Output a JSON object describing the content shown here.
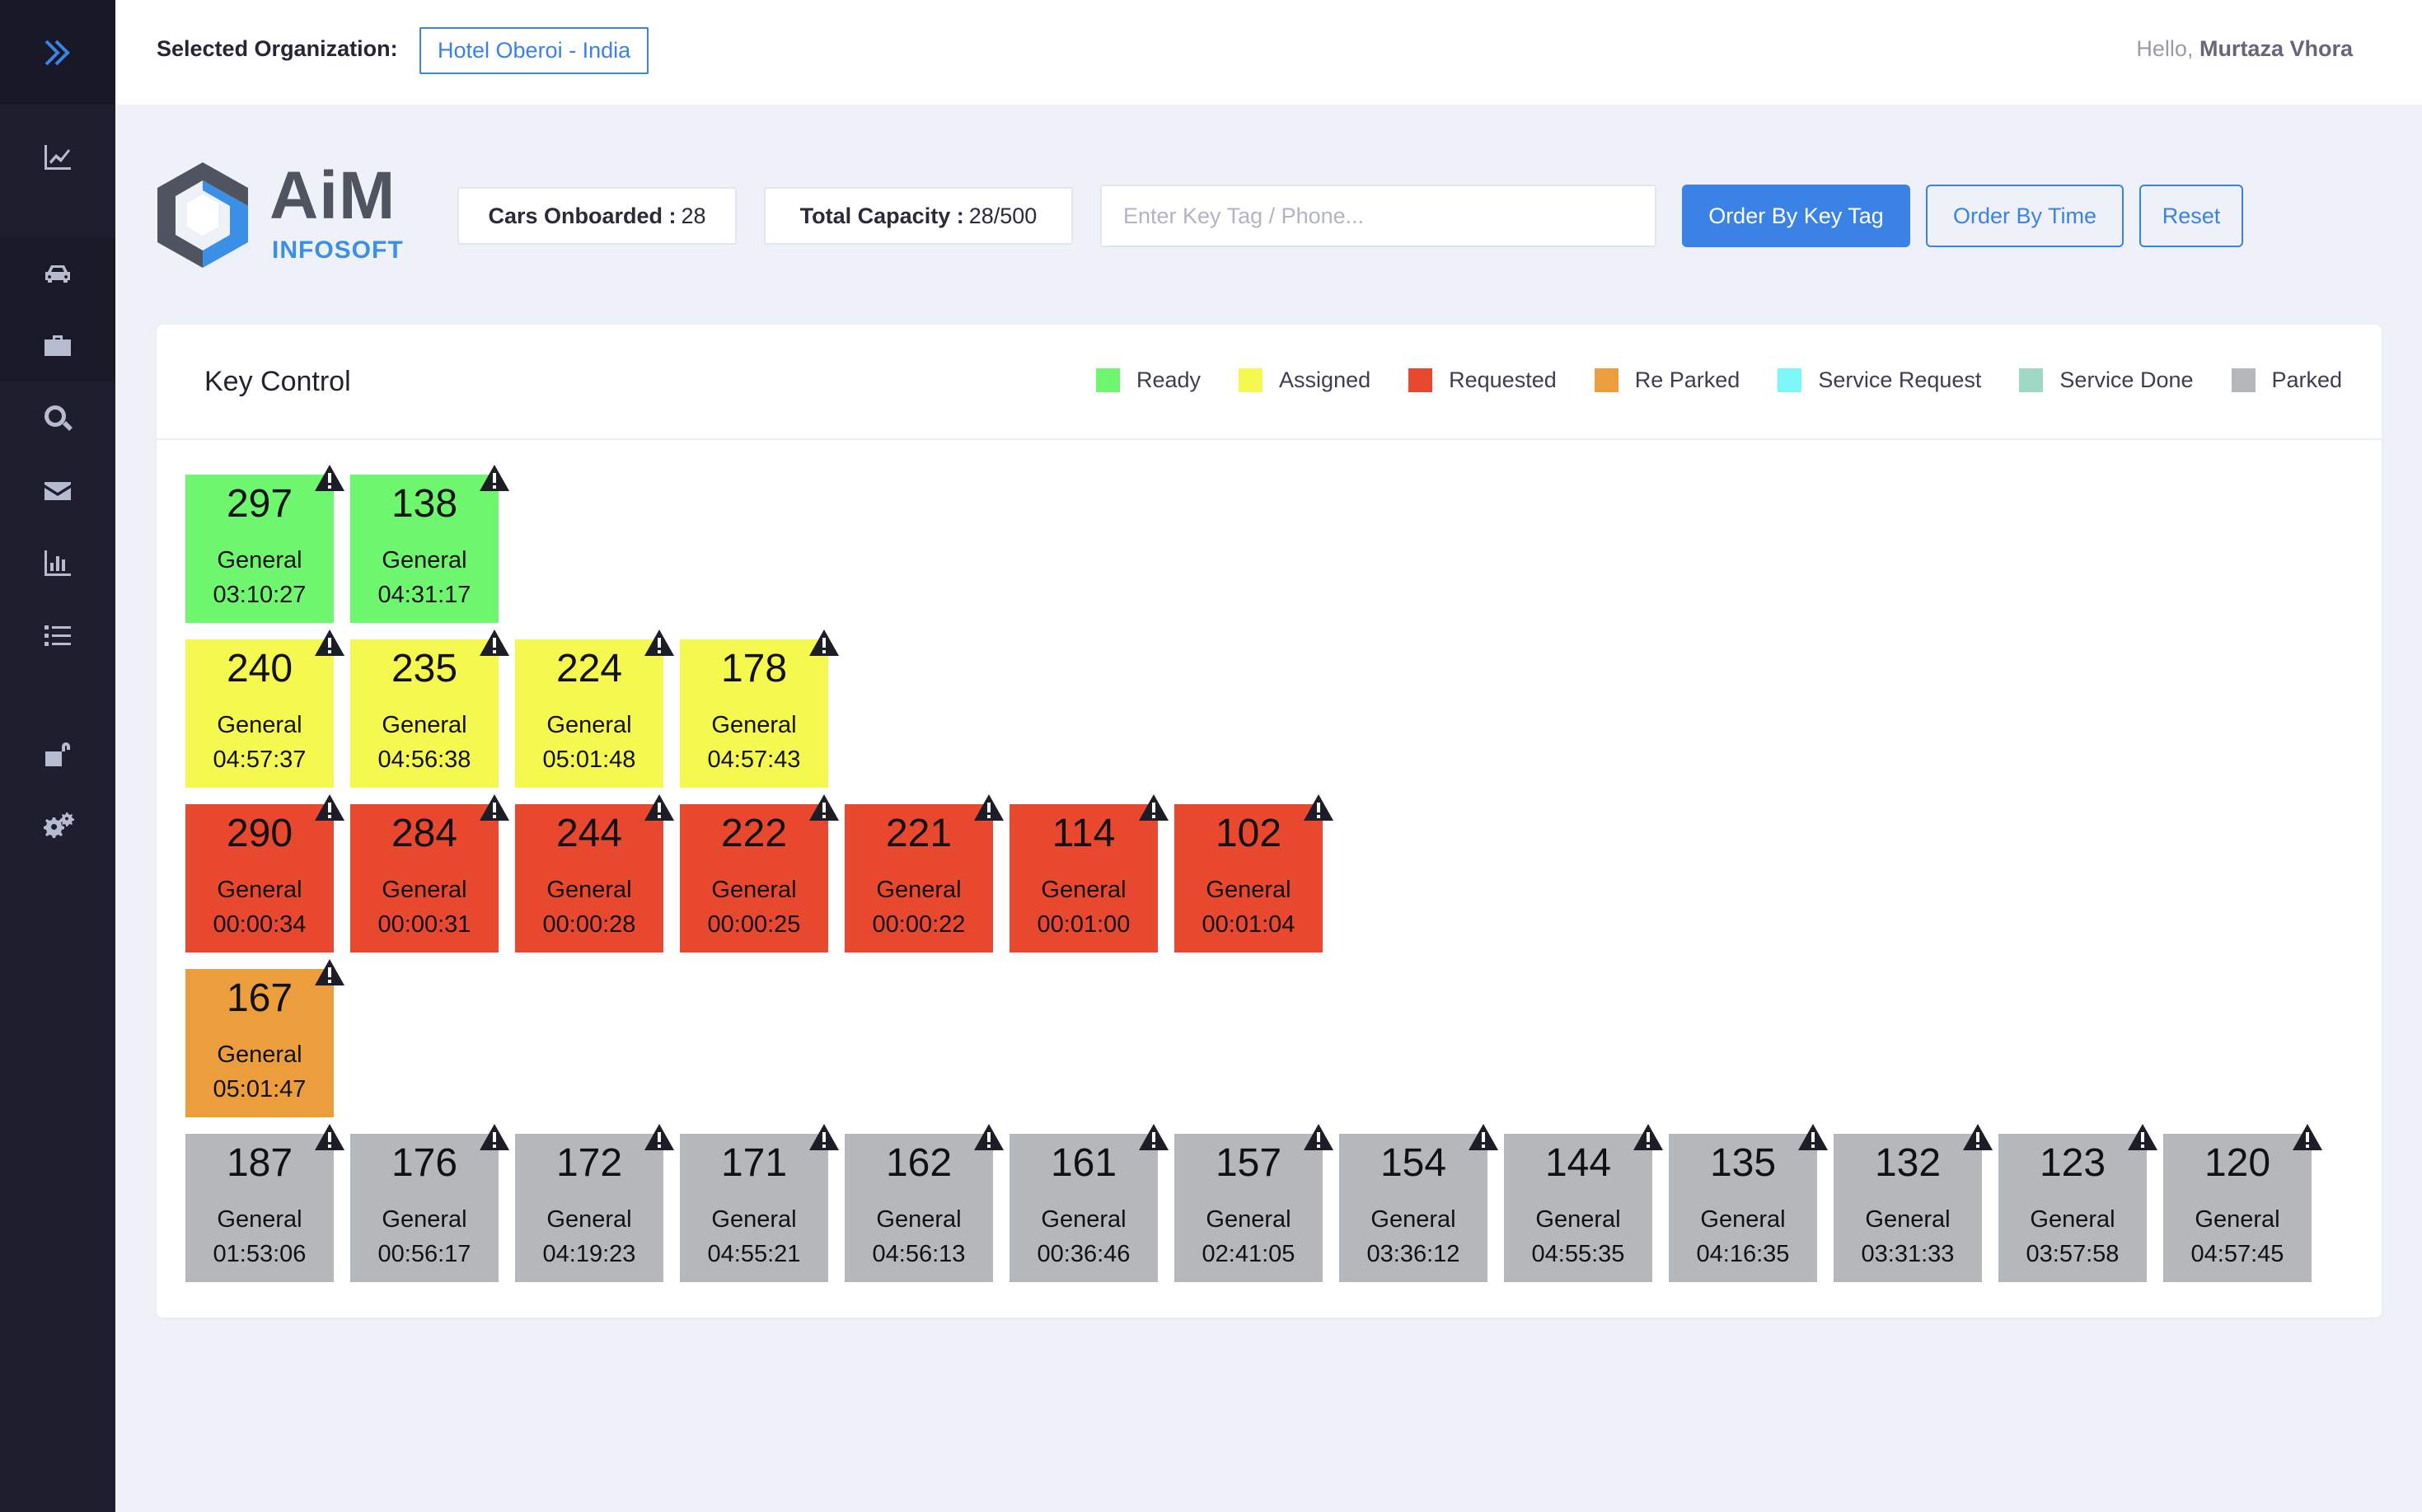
{
  "header": {
    "org_label": "Selected Organization:",
    "org_value": "Hotel Oberoi - India",
    "greeting_prefix": "Hello,",
    "user_name": "Murtaza Vhora"
  },
  "sidebar": {
    "items": [
      {
        "name": "expand-icon"
      },
      {
        "name": "dashboard-chart-icon"
      },
      {
        "name": "car-icon"
      },
      {
        "name": "briefcase-icon"
      },
      {
        "name": "search-icon"
      },
      {
        "name": "mail-icon"
      },
      {
        "name": "bar-chart-icon"
      },
      {
        "name": "list-icon"
      },
      {
        "name": "unlock-icon"
      },
      {
        "name": "settings-icon"
      }
    ]
  },
  "logo": {
    "line1": "AiM",
    "line2": "INFOSOFT"
  },
  "stats": {
    "cars_label": "Cars Onboarded :",
    "cars_value": "28",
    "capacity_label": "Total Capacity :",
    "capacity_value": "28/500"
  },
  "search": {
    "placeholder": "Enter Key Tag / Phone..."
  },
  "buttons": {
    "order_key": "Order By Key Tag",
    "order_time": "Order By Time",
    "reset": "Reset"
  },
  "panel": {
    "title": "Key Control"
  },
  "colors": {
    "ready": "#6ef76e",
    "assigned": "#f5f84e",
    "requested": "#e8482e",
    "reparked": "#ec9e3c",
    "service_request": "#7af7f6",
    "service_done": "#9fd8c4",
    "parked": "#b5b8bb",
    "accent": "#3b82e6"
  },
  "legend": [
    {
      "label": "Ready",
      "status": "ready"
    },
    {
      "label": "Assigned",
      "status": "assigned"
    },
    {
      "label": "Requested",
      "status": "requested"
    },
    {
      "label": "Re Parked",
      "status": "reparked"
    },
    {
      "label": "Service Request",
      "status": "service_request"
    },
    {
      "label": "Service Done",
      "status": "service_done"
    },
    {
      "label": "Parked",
      "status": "parked"
    }
  ],
  "key_rows": [
    {
      "status": "ready",
      "keys": [
        {
          "tag": "297",
          "category": "General",
          "time": "03:10:27"
        },
        {
          "tag": "138",
          "category": "General",
          "time": "04:31:17"
        }
      ]
    },
    {
      "status": "assigned",
      "keys": [
        {
          "tag": "240",
          "category": "General",
          "time": "04:57:37"
        },
        {
          "tag": "235",
          "category": "General",
          "time": "04:56:38"
        },
        {
          "tag": "224",
          "category": "General",
          "time": "05:01:48"
        },
        {
          "tag": "178",
          "category": "General",
          "time": "04:57:43"
        }
      ]
    },
    {
      "status": "requested",
      "keys": [
        {
          "tag": "290",
          "category": "General",
          "time": "00:00:34"
        },
        {
          "tag": "284",
          "category": "General",
          "time": "00:00:31"
        },
        {
          "tag": "244",
          "category": "General",
          "time": "00:00:28"
        },
        {
          "tag": "222",
          "category": "General",
          "time": "00:00:25"
        },
        {
          "tag": "221",
          "category": "General",
          "time": "00:00:22"
        },
        {
          "tag": "114",
          "category": "General",
          "time": "00:01:00"
        },
        {
          "tag": "102",
          "category": "General",
          "time": "00:01:04"
        }
      ]
    },
    {
      "status": "reparked",
      "keys": [
        {
          "tag": "167",
          "category": "General",
          "time": "05:01:47"
        }
      ]
    },
    {
      "status": "parked",
      "keys": [
        {
          "tag": "187",
          "category": "General",
          "time": "01:53:06"
        },
        {
          "tag": "176",
          "category": "General",
          "time": "00:56:17"
        },
        {
          "tag": "172",
          "category": "General",
          "time": "04:19:23"
        },
        {
          "tag": "171",
          "category": "General",
          "time": "04:55:21"
        },
        {
          "tag": "162",
          "category": "General",
          "time": "04:56:13"
        },
        {
          "tag": "161",
          "category": "General",
          "time": "00:36:46"
        },
        {
          "tag": "157",
          "category": "General",
          "time": "02:41:05"
        },
        {
          "tag": "154",
          "category": "General",
          "time": "03:36:12"
        },
        {
          "tag": "144",
          "category": "General",
          "time": "04:55:35"
        },
        {
          "tag": "135",
          "category": "General",
          "time": "04:16:35"
        },
        {
          "tag": "132",
          "category": "General",
          "time": "03:31:33"
        },
        {
          "tag": "123",
          "category": "General",
          "time": "03:57:58"
        },
        {
          "tag": "120",
          "category": "General",
          "time": "04:57:45"
        }
      ]
    }
  ]
}
